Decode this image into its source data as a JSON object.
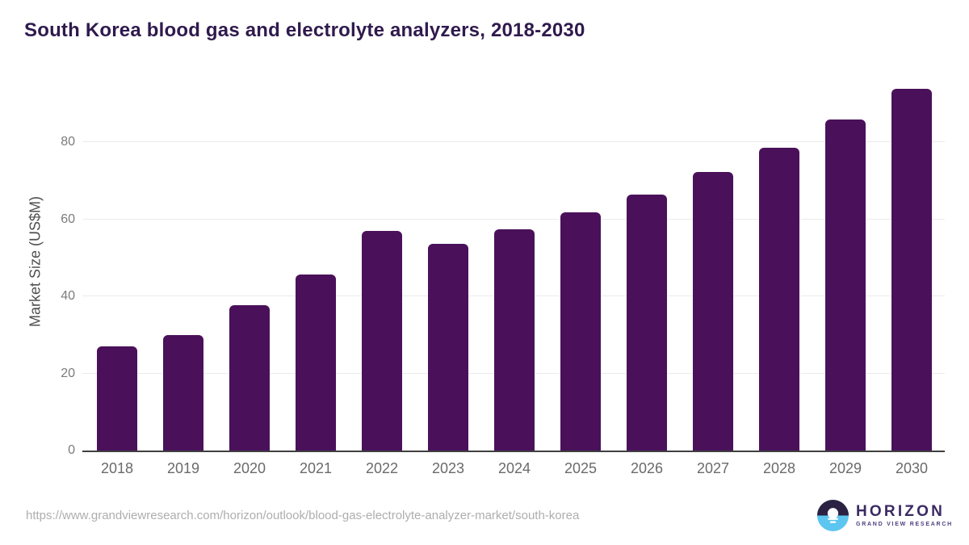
{
  "header": {
    "title": "South Korea blood gas and electrolyte analyzers, 2018-2030",
    "title_color": "#2f1a4d"
  },
  "chart_data": {
    "type": "bar",
    "title": "South Korea blood gas and electrolyte analyzers, 2018-2030",
    "categories": [
      "2018",
      "2019",
      "2020",
      "2021",
      "2022",
      "2023",
      "2024",
      "2025",
      "2026",
      "2027",
      "2028",
      "2029",
      "2030"
    ],
    "values": [
      27.0,
      30.0,
      37.8,
      45.7,
      57.0,
      53.6,
      57.4,
      61.9,
      66.5,
      72.2,
      78.6,
      85.8,
      93.9
    ],
    "xlabel": "",
    "ylabel": "Market Size (US$M)",
    "yticks": [
      0,
      20,
      40,
      60,
      80
    ],
    "ylim": [
      0,
      97
    ],
    "grid": "horizontal",
    "legend": "none",
    "bar_color": "#4a115a",
    "gridline_color": "#ebebeb",
    "axis_line_color": "#3f3f3f"
  },
  "footer": {
    "source_url": "https://www.grandviewresearch.com/horizon/outlook/blood-gas-electrolyte-analyzer-market/south-korea",
    "logo": {
      "title": "HORIZON",
      "subtitle": "GRAND VIEW RESEARCH",
      "icon": "horizon-sunrise-icon",
      "icon_dark_color": "#2b2143",
      "icon_blue_color": "#5dc6f0",
      "title_color": "#3b2a63"
    }
  }
}
